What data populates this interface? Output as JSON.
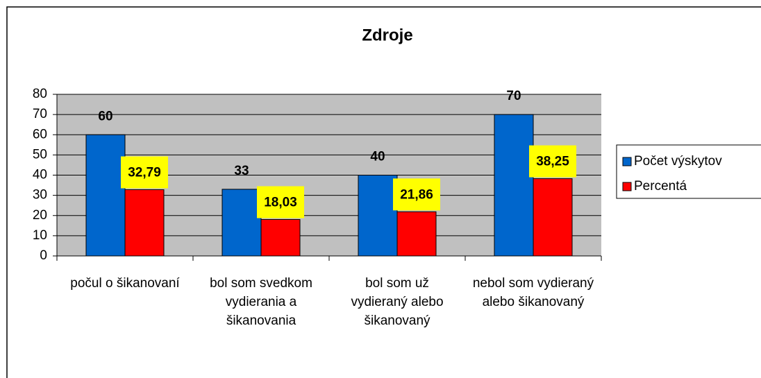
{
  "chart_data": {
    "type": "bar",
    "title": "Zdroje",
    "categories": [
      "počul o šikanovaní",
      "bol som svedkom vydierania a šikanovania",
      "bol som už vydieraný alebo šikanovaný",
      "nebol som vydieraný alebo šikanovaný"
    ],
    "series": [
      {
        "name": "Počet výskytov",
        "color": "#0066cc",
        "values": [
          60,
          33,
          40,
          70
        ]
      },
      {
        "name": "Percentá",
        "color": "#ff0000",
        "values": [
          32.79,
          18.03,
          21.86,
          38.25
        ],
        "value_labels": [
          "32,79",
          "18,03",
          "21,86",
          "38,25"
        ]
      }
    ],
    "ylim": [
      0,
      80
    ],
    "yticks": [
      0,
      10,
      20,
      30,
      40,
      50,
      60,
      70,
      80
    ],
    "grid": true,
    "plot_background": "#c0c0c0",
    "legend": "right"
  }
}
